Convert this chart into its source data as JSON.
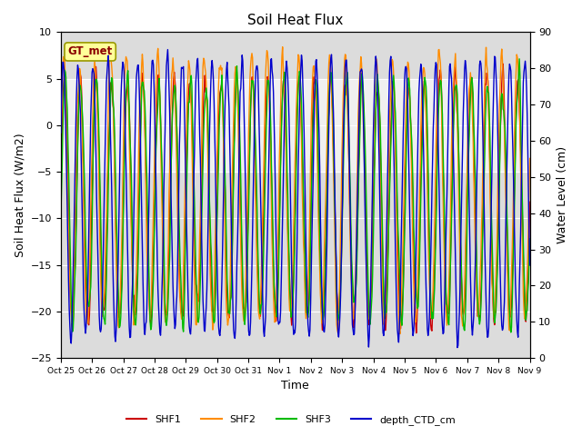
{
  "title": "Soil Heat Flux",
  "ylabel_left": "Soil Heat Flux (W/m2)",
  "ylabel_right": "Water Level (cm)",
  "xlabel": "Time",
  "ylim_left": [
    -25,
    10
  ],
  "ylim_right": [
    0,
    90
  ],
  "shaded_band": [
    -5,
    5
  ],
  "annotation_label": "GT_met",
  "annotation_color": "#8B0000",
  "annotation_bg": "#FFFF99",
  "colors": {
    "SHF1": "#CC0000",
    "SHF2": "#FF8C00",
    "SHF3": "#00BB00",
    "depth_CTD_cm": "#0000CC"
  },
  "bg_color": "#DCDCDC",
  "white_band_color": "#F0F0F0",
  "xtick_labels": [
    "Oct 25",
    "Oct 26",
    "Oct 27",
    "Oct 28",
    "Oct 29",
    "Oct 30",
    "Oct 31",
    "Nov 1",
    "Nov 2",
    "Nov 3",
    "Nov 4",
    "Nov 5",
    "Nov 6",
    "Nov 7",
    "Nov 8",
    "Nov 9"
  ],
  "seed": 42,
  "n_sub": 48
}
